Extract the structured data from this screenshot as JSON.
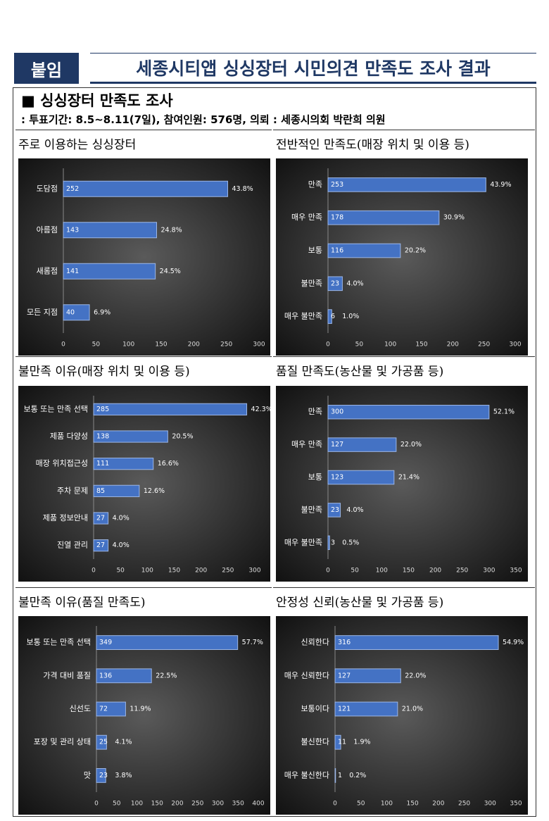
{
  "header": {
    "badge": "붙임",
    "title": "세종시티앱 싱싱장터 시민의견 만족도 조사 결과"
  },
  "section": {
    "title": "■ 싱싱장터 만족도 조사",
    "note": ": 투표기간: 8.5~8.11(7일), 참여인원: 576명, 의뢰 : 세종시의회 박란희 의원"
  },
  "chart_data": [
    {
      "type": "bar",
      "title": "주로 이용하는 싱싱장터",
      "categories": [
        "도담점",
        "아름점",
        "새롬점",
        "모든 지점"
      ],
      "values": [
        252,
        143,
        141,
        40
      ],
      "share_labels": [
        "43.8%",
        "24.8%",
        "24.5%",
        "6.9%"
      ],
      "color": "#4472c4",
      "xlim": [
        0,
        300
      ],
      "xticks": [
        0,
        50,
        100,
        150,
        200,
        250,
        300
      ]
    },
    {
      "type": "bar",
      "title": "전반적인 만족도(매장 위치 및 이용 등)",
      "categories": [
        "만족",
        "매우 만족",
        "보통",
        "불만족",
        "매우 불만족"
      ],
      "values": [
        253,
        178,
        116,
        23,
        6
      ],
      "share_labels": [
        "43.9%",
        "30.9%",
        "20.2%",
        "4.0%",
        "1.0%"
      ],
      "color": "#4472c4",
      "xlim": [
        0,
        300
      ],
      "xticks": [
        0,
        50,
        100,
        150,
        200,
        250,
        300
      ]
    },
    {
      "type": "bar",
      "title": "불만족 이유(매장 위치 및 이용 등)",
      "categories": [
        "보통 또는 만족 선택",
        "제품 다양성",
        "매장 위치접근성",
        "주차 문제",
        "제품 정보안내",
        "진열 관리"
      ],
      "values": [
        285,
        138,
        111,
        85,
        27,
        27
      ],
      "share_labels": [
        "42.3%",
        "20.5%",
        "16.6%",
        "12.6%",
        "4.0%",
        "4.0%"
      ],
      "color": "#4472c4",
      "xlim": [
        0,
        300
      ],
      "xticks": [
        0,
        50,
        100,
        150,
        200,
        250,
        300
      ]
    },
    {
      "type": "bar",
      "title": "품질 만족도(농산물 및 가공품 등)",
      "categories": [
        "만족",
        "매우 만족",
        "보통",
        "불만족",
        "매우 불만족"
      ],
      "values": [
        300,
        127,
        123,
        23,
        3
      ],
      "share_labels": [
        "52.1%",
        "22.0%",
        "21.4%",
        "4.0%",
        "0.5%"
      ],
      "color": "#4472c4",
      "xlim": [
        0,
        350
      ],
      "xticks": [
        0,
        50,
        100,
        150,
        200,
        250,
        300,
        350
      ]
    },
    {
      "type": "bar",
      "title": "불만족 이유(품질 만족도)",
      "categories": [
        "보통 또는 만족 선택",
        "가격 대비 품질",
        "신선도",
        "포장 및 관리 상태",
        "맛"
      ],
      "values": [
        349,
        136,
        72,
        25,
        23
      ],
      "share_labels": [
        "57.7%",
        "22.5%",
        "11.9%",
        "4.1%",
        "3.8%"
      ],
      "color": "#4472c4",
      "xlim": [
        0,
        400
      ],
      "xticks": [
        0,
        50,
        100,
        150,
        200,
        250,
        300,
        350,
        400
      ]
    },
    {
      "type": "bar",
      "title": "안정성 신뢰(농산물 및 가공품 등)",
      "categories": [
        "신뢰한다",
        "매우 신뢰한다",
        "보통이다",
        "불신한다",
        "매우 불신한다"
      ],
      "values": [
        316,
        127,
        121,
        11,
        1
      ],
      "share_labels": [
        "54.9%",
        "22.0%",
        "21.0%",
        "1.9%",
        "0.2%"
      ],
      "color": "#4472c4",
      "xlim": [
        0,
        350
      ],
      "xticks": [
        0,
        50,
        100,
        150,
        200,
        250,
        300,
        350
      ]
    }
  ]
}
